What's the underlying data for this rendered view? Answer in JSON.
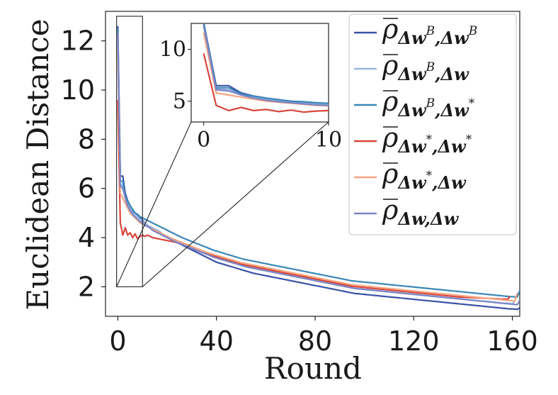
{
  "chart_data": {
    "type": "line",
    "title": "",
    "xlabel": "Round",
    "ylabel": "Euclidean Distance",
    "xlim": [
      -5,
      163
    ],
    "ylim": [
      0.8,
      13.2
    ],
    "xticks": [
      0,
      40,
      80,
      120,
      160
    ],
    "yticks": [
      2,
      4,
      6,
      8,
      10,
      12
    ],
    "grid": false,
    "legend_position": "top-right",
    "series": [
      {
        "name": "rho_{Δw^B,Δw^B}",
        "rho": "ρ",
        "sub": "Δw",
        "sup1": "B",
        "mid": ",Δw",
        "sup2": "B",
        "color": "#3a52a8",
        "values": [
          12.6,
          6.5,
          6.5,
          5.8,
          5.5,
          5.3,
          5.1,
          5.0,
          4.9,
          4.8,
          4.7,
          4.6,
          4.5,
          4.45,
          4.4,
          4.3,
          4.25,
          4.2,
          4.1,
          4.05,
          4.0,
          3.95,
          3.9,
          3.85,
          3.8,
          3.75,
          3.7,
          3.65,
          3.6,
          3.55,
          3.5,
          3.45,
          3.4,
          3.35,
          3.3,
          3.25,
          3.2,
          3.15,
          3.1,
          3.05,
          3.0,
          2.97,
          2.94,
          2.91,
          2.88,
          2.85,
          2.82,
          2.79,
          2.76,
          2.73,
          2.7,
          2.67,
          2.64,
          2.61,
          2.58,
          2.55,
          2.53,
          2.51,
          2.49,
          2.47,
          2.45,
          2.43,
          2.41,
          2.39,
          2.37,
          2.35,
          2.33,
          2.31,
          2.29,
          2.27,
          2.25,
          2.23,
          2.21,
          2.19,
          2.17,
          2.15,
          2.13,
          2.11,
          2.09,
          2.07,
          2.05,
          2.03,
          2.01,
          1.99,
          1.97,
          1.95,
          1.93,
          1.91,
          1.89,
          1.87,
          1.85,
          1.83,
          1.81,
          1.79,
          1.77,
          1.75,
          1.73,
          1.72,
          1.71,
          1.7,
          1.69,
          1.68,
          1.67,
          1.66,
          1.65,
          1.64,
          1.63,
          1.62,
          1.61,
          1.6,
          1.59,
          1.58,
          1.57,
          1.56,
          1.55,
          1.54,
          1.53,
          1.52,
          1.51,
          1.5,
          1.49,
          1.48,
          1.47,
          1.46,
          1.45,
          1.44,
          1.43,
          1.42,
          1.41,
          1.4,
          1.39,
          1.38,
          1.37,
          1.36,
          1.35,
          1.34,
          1.33,
          1.32,
          1.31,
          1.3,
          1.29,
          1.28,
          1.27,
          1.26,
          1.25,
          1.24,
          1.23,
          1.22,
          1.21,
          1.2,
          1.19,
          1.18,
          1.17,
          1.16,
          1.15,
          1.14,
          1.13,
          1.12,
          1.11,
          1.1,
          1.1,
          1.09,
          1.08,
          1.15
        ]
      },
      {
        "name": "rho_{Δw^B,Δw}",
        "rho": "ρ",
        "sub": "Δw",
        "sup1": "B",
        "mid": ",Δw",
        "sup2": "",
        "color": "#9db6e6",
        "values": [
          12.2,
          6.2,
          6.1,
          5.6,
          5.4,
          5.2,
          5.0,
          4.95,
          4.85,
          4.75,
          4.65,
          4.6,
          4.5,
          4.45,
          4.4,
          4.35,
          4.3,
          4.25,
          4.15,
          4.1,
          4.05,
          4.0,
          3.95,
          3.9,
          3.85,
          3.8,
          3.75,
          3.7,
          3.66,
          3.62,
          3.58,
          3.54,
          3.5,
          3.46,
          3.42,
          3.38,
          3.34,
          3.3,
          3.26,
          3.22,
          3.18,
          3.15,
          3.12,
          3.09,
          3.06,
          3.03,
          3.0,
          2.97,
          2.94,
          2.91,
          2.88,
          2.85,
          2.82,
          2.8,
          2.78,
          2.76,
          2.74,
          2.72,
          2.7,
          2.68,
          2.66,
          2.64,
          2.62,
          2.6,
          2.58,
          2.56,
          2.54,
          2.52,
          2.5,
          2.48,
          2.46,
          2.44,
          2.42,
          2.4,
          2.38,
          2.36,
          2.34,
          2.32,
          2.3,
          2.28,
          2.26,
          2.24,
          2.22,
          2.2,
          2.18,
          2.16,
          2.14,
          2.12,
          2.1,
          2.08,
          2.06,
          2.04,
          2.02,
          2.0,
          1.98,
          1.96,
          1.94,
          1.93,
          1.92,
          1.91,
          1.9,
          1.89,
          1.88,
          1.87,
          1.86,
          1.85,
          1.84,
          1.83,
          1.82,
          1.81,
          1.8,
          1.79,
          1.78,
          1.77,
          1.76,
          1.75,
          1.74,
          1.73,
          1.72,
          1.71,
          1.7,
          1.69,
          1.68,
          1.67,
          1.66,
          1.65,
          1.64,
          1.63,
          1.62,
          1.61,
          1.6,
          1.59,
          1.58,
          1.57,
          1.56,
          1.55,
          1.54,
          1.53,
          1.52,
          1.51,
          1.5,
          1.49,
          1.48,
          1.47,
          1.46,
          1.45,
          1.44,
          1.43,
          1.42,
          1.41,
          1.4,
          1.39,
          1.38,
          1.37,
          1.36,
          1.35,
          1.34,
          1.33,
          1.33,
          1.32,
          1.31,
          1.4
        ]
      },
      {
        "name": "rho_{Δw^B,Δw*}",
        "rho": "ρ",
        "sub": "Δw",
        "sup1": "B",
        "mid": ",Δw",
        "sup2": "*",
        "color": "#3a87b8",
        "values": [
          12.5,
          6.3,
          6.3,
          5.7,
          5.5,
          5.3,
          5.15,
          5.0,
          4.95,
          4.85,
          4.8,
          4.75,
          4.7,
          4.65,
          4.6,
          4.55,
          4.5,
          4.45,
          4.4,
          4.35,
          4.3,
          4.25,
          4.2,
          4.15,
          4.1,
          4.05,
          4.0,
          3.96,
          3.92,
          3.88,
          3.84,
          3.8,
          3.76,
          3.72,
          3.68,
          3.64,
          3.6,
          3.56,
          3.52,
          3.48,
          3.45,
          3.42,
          3.39,
          3.36,
          3.33,
          3.3,
          3.27,
          3.24,
          3.21,
          3.18,
          3.15,
          3.12,
          3.1,
          3.08,
          3.06,
          3.04,
          3.02,
          3.0,
          2.98,
          2.96,
          2.94,
          2.92,
          2.9,
          2.88,
          2.86,
          2.84,
          2.82,
          2.8,
          2.78,
          2.76,
          2.74,
          2.72,
          2.7,
          2.68,
          2.66,
          2.64,
          2.62,
          2.6,
          2.58,
          2.56,
          2.54,
          2.52,
          2.5,
          2.48,
          2.46,
          2.44,
          2.42,
          2.4,
          2.38,
          2.36,
          2.34,
          2.32,
          2.3,
          2.28,
          2.26,
          2.24,
          2.23,
          2.22,
          2.21,
          2.2,
          2.19,
          2.18,
          2.17,
          2.16,
          2.15,
          2.14,
          2.13,
          2.12,
          2.11,
          2.1,
          2.09,
          2.08,
          2.07,
          2.06,
          2.05,
          2.04,
          2.03,
          2.02,
          2.01,
          2.0,
          1.99,
          1.98,
          1.97,
          1.96,
          1.95,
          1.94,
          1.93,
          1.92,
          1.91,
          1.9,
          1.89,
          1.88,
          1.87,
          1.86,
          1.85,
          1.84,
          1.83,
          1.82,
          1.81,
          1.8,
          1.79,
          1.78,
          1.77,
          1.76,
          1.75,
          1.74,
          1.73,
          1.72,
          1.71,
          1.7,
          1.69,
          1.68,
          1.67,
          1.66,
          1.65,
          1.64,
          1.63,
          1.62,
          1.61,
          1.6,
          1.6,
          1.59,
          1.58,
          1.85
        ]
      },
      {
        "name": "rho_{Δw*,Δw*}",
        "rho": "ρ",
        "sub": "Δw",
        "sup1": "*",
        "mid": ",Δw",
        "sup2": "*",
        "color": "#d9463b",
        "values": [
          9.6,
          4.6,
          4.1,
          4.4,
          4.1,
          4.2,
          4.0,
          4.15,
          3.95,
          4.05,
          4.1,
          4.05,
          4.1,
          4.05,
          4.0,
          3.98,
          3.96,
          3.94,
          3.92,
          3.9,
          3.88,
          3.86,
          3.84,
          3.82,
          3.8,
          3.76,
          3.72,
          3.68,
          3.64,
          3.6,
          3.56,
          3.52,
          3.48,
          3.44,
          3.4,
          3.37,
          3.34,
          3.31,
          3.28,
          3.25,
          3.22,
          3.19,
          3.16,
          3.13,
          3.1,
          3.07,
          3.04,
          3.01,
          2.98,
          2.95,
          2.92,
          2.9,
          2.88,
          2.86,
          2.84,
          2.82,
          2.8,
          2.78,
          2.76,
          2.74,
          2.72,
          2.7,
          2.68,
          2.66,
          2.64,
          2.62,
          2.6,
          2.58,
          2.56,
          2.54,
          2.52,
          2.5,
          2.48,
          2.46,
          2.44,
          2.42,
          2.4,
          2.38,
          2.36,
          2.34,
          2.32,
          2.3,
          2.28,
          2.26,
          2.24,
          2.22,
          2.2,
          2.18,
          2.16,
          2.14,
          2.12,
          2.1,
          2.08,
          2.06,
          2.04,
          2.02,
          2.01,
          2.0,
          1.99,
          1.98,
          1.97,
          1.96,
          1.95,
          1.94,
          1.93,
          1.92,
          1.91,
          1.9,
          1.89,
          1.88,
          1.87,
          1.86,
          1.85,
          1.84,
          1.83,
          1.82,
          1.81,
          1.8,
          1.79,
          1.78,
          1.77,
          1.76,
          1.75,
          1.74,
          1.73,
          1.72,
          1.71,
          1.7,
          1.69,
          1.68,
          1.67,
          1.66,
          1.65,
          1.64,
          1.63,
          1.62,
          1.61,
          1.6,
          1.59,
          1.58,
          1.58,
          1.57,
          1.57,
          1.56,
          1.56,
          1.55,
          1.55,
          1.54,
          1.54,
          1.53,
          1.53,
          1.52,
          1.52,
          1.51,
          1.51,
          1.5,
          1.5,
          1.5,
          1.49,
          1.6
        ]
      },
      {
        "name": "rho_{Δw*,Δw}",
        "rho": "ρ",
        "sub": "Δw",
        "sup1": "*",
        "mid": ",Δw",
        "sup2": "",
        "color": "#f4a582",
        "values": [
          11.6,
          5.8,
          5.6,
          5.4,
          5.2,
          5.0,
          4.9,
          4.8,
          4.7,
          4.6,
          4.55,
          4.5,
          4.45,
          4.4,
          4.35,
          4.3,
          4.25,
          4.2,
          4.15,
          4.1,
          4.05,
          4.0,
          3.96,
          3.92,
          3.88,
          3.84,
          3.8,
          3.76,
          3.72,
          3.68,
          3.64,
          3.6,
          3.56,
          3.52,
          3.48,
          3.44,
          3.4,
          3.37,
          3.34,
          3.31,
          3.28,
          3.25,
          3.22,
          3.19,
          3.16,
          3.13,
          3.1,
          3.07,
          3.04,
          3.01,
          2.98,
          2.96,
          2.94,
          2.92,
          2.9,
          2.88,
          2.86,
          2.84,
          2.82,
          2.8,
          2.78,
          2.76,
          2.74,
          2.72,
          2.7,
          2.68,
          2.66,
          2.64,
          2.62,
          2.6,
          2.58,
          2.56,
          2.54,
          2.52,
          2.5,
          2.48,
          2.46,
          2.44,
          2.42,
          2.4,
          2.38,
          2.36,
          2.34,
          2.32,
          2.3,
          2.28,
          2.26,
          2.24,
          2.22,
          2.2,
          2.18,
          2.16,
          2.14,
          2.12,
          2.1,
          2.08,
          2.07,
          2.06,
          2.05,
          2.04,
          2.03,
          2.02,
          2.01,
          2.0,
          1.99,
          1.98,
          1.97,
          1.96,
          1.95,
          1.94,
          1.93,
          1.92,
          1.91,
          1.9,
          1.89,
          1.88,
          1.87,
          1.86,
          1.85,
          1.84,
          1.83,
          1.82,
          1.81,
          1.8,
          1.79,
          1.78,
          1.77,
          1.76,
          1.75,
          1.74,
          1.73,
          1.72,
          1.71,
          1.7,
          1.69,
          1.68,
          1.67,
          1.66,
          1.65,
          1.64,
          1.63,
          1.62,
          1.61,
          1.6,
          1.59,
          1.58,
          1.57,
          1.56,
          1.55,
          1.54,
          1.53,
          1.52,
          1.51,
          1.5,
          1.49,
          1.48,
          1.47,
          1.46,
          1.45,
          1.44,
          1.43,
          1.42,
          1.75
        ]
      },
      {
        "name": "rho_{Δw,Δw}",
        "rho": "ρ",
        "sub": "Δw",
        "sup1": "",
        "mid": ",Δw",
        "sup2": "",
        "color": "#7b86c4",
        "values": [
          12.3,
          6.1,
          6.0,
          5.6,
          5.3,
          5.1,
          4.95,
          4.85,
          4.75,
          4.65,
          4.6,
          4.5,
          4.45,
          4.4,
          4.3,
          4.25,
          4.2,
          4.15,
          4.1,
          4.05,
          4.0,
          3.95,
          3.9,
          3.85,
          3.8,
          3.76,
          3.72,
          3.68,
          3.64,
          3.6,
          3.56,
          3.52,
          3.48,
          3.44,
          3.4,
          3.36,
          3.32,
          3.28,
          3.24,
          3.2,
          3.17,
          3.14,
          3.11,
          3.08,
          3.05,
          3.02,
          2.99,
          2.96,
          2.93,
          2.9,
          2.87,
          2.84,
          2.81,
          2.79,
          2.77,
          2.75,
          2.73,
          2.71,
          2.69,
          2.67,
          2.65,
          2.63,
          2.61,
          2.59,
          2.57,
          2.55,
          2.53,
          2.51,
          2.49,
          2.47,
          2.45,
          2.43,
          2.41,
          2.39,
          2.37,
          2.35,
          2.33,
          2.31,
          2.29,
          2.27,
          2.25,
          2.23,
          2.21,
          2.19,
          2.17,
          2.15,
          2.13,
          2.11,
          2.09,
          2.07,
          2.05,
          2.03,
          2.01,
          1.99,
          1.97,
          1.95,
          1.93,
          1.92,
          1.91,
          1.9,
          1.89,
          1.88,
          1.87,
          1.86,
          1.85,
          1.84,
          1.83,
          1.82,
          1.81,
          1.8,
          1.79,
          1.78,
          1.77,
          1.76,
          1.75,
          1.74,
          1.73,
          1.72,
          1.71,
          1.7,
          1.69,
          1.68,
          1.67,
          1.66,
          1.65,
          1.64,
          1.63,
          1.62,
          1.61,
          1.6,
          1.59,
          1.58,
          1.57,
          1.56,
          1.55,
          1.54,
          1.53,
          1.52,
          1.51,
          1.5,
          1.49,
          1.48,
          1.47,
          1.46,
          1.45,
          1.44,
          1.43,
          1.42,
          1.41,
          1.4,
          1.39,
          1.38,
          1.37,
          1.36,
          1.35,
          1.34,
          1.33,
          1.32,
          1.31,
          1.3,
          1.29,
          1.28,
          1.27,
          1.45
        ]
      }
    ],
    "zoom_box": {
      "x_range": [
        -0.5,
        10
      ],
      "y_range": [
        2,
        13
      ]
    },
    "inset": {
      "xlim": [
        -1,
        10
      ],
      "ylim": [
        3.0,
        12.5
      ],
      "xticks": [
        0,
        10
      ],
      "yticks": [
        5,
        10
      ]
    }
  }
}
